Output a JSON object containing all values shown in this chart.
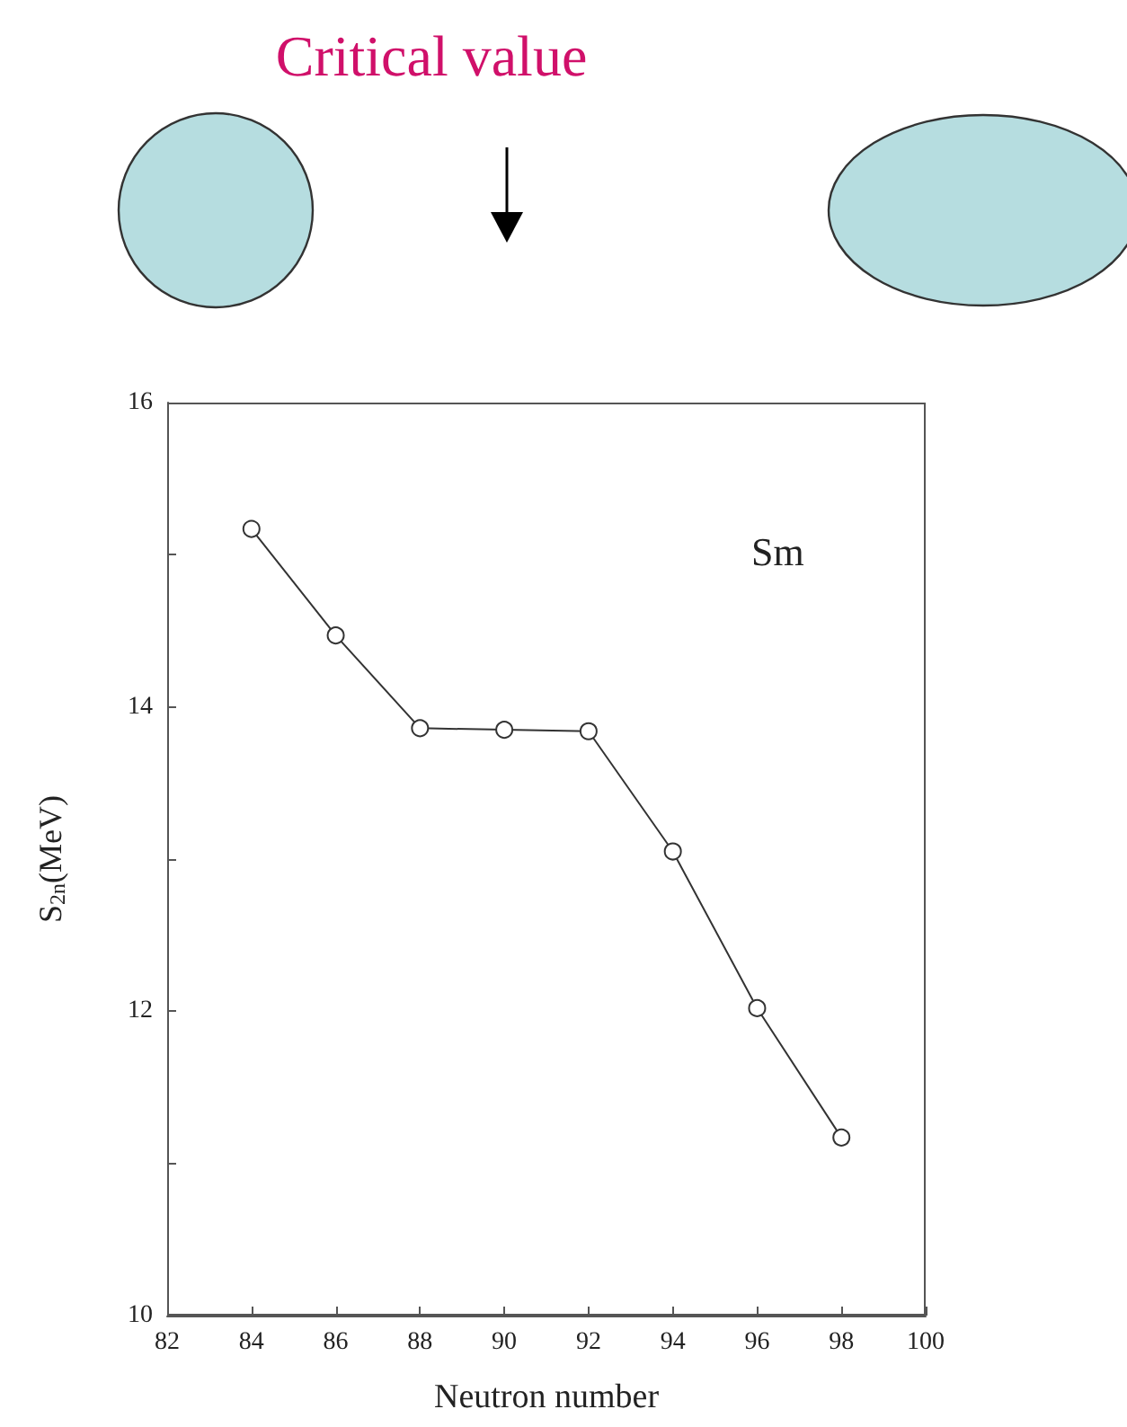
{
  "chart_data": {
    "type": "line",
    "title": "Critical value",
    "xlabel": "Neutron number",
    "ylabel": "S$_{2n}$(MeV)",
    "annotations": [
      "Sm"
    ],
    "x": [
      84,
      86,
      88,
      90,
      92,
      94,
      96,
      98
    ],
    "series": [
      {
        "color": "#333333",
        "values": [
          15.17,
          14.47,
          13.86,
          13.85,
          13.84,
          13.05,
          12.02,
          11.17
        ]
      }
    ],
    "xlim": [
      82,
      100
    ],
    "xticks": [
      82,
      84,
      86,
      88,
      90,
      92,
      94,
      96,
      98,
      100
    ],
    "ylim": [
      10,
      16
    ],
    "yticks": [
      10,
      {
        "value": 11,
        "label": null
      },
      12,
      {
        "value": 13,
        "label": null
      },
      14,
      {
        "value": 15,
        "label": null
      },
      16
    ],
    "grid": false,
    "marker": "circle",
    "line_style": "solid"
  }
}
